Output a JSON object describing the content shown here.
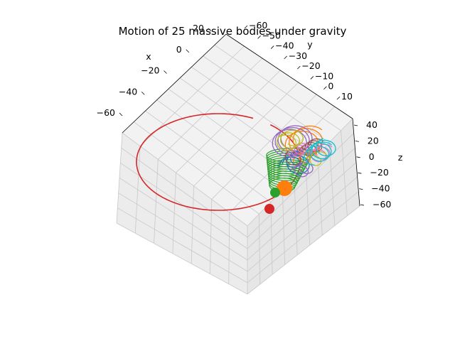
{
  "chart_data": {
    "type": "line",
    "projection": "3d",
    "title": "Motion of 25 massive bodies under gravity",
    "xlabel": "x",
    "ylabel": "y",
    "zlabel": "z",
    "x_ticks": [
      "20",
      "0",
      "−20",
      "−40",
      "−60"
    ],
    "y_ticks": [
      "−60",
      "−50",
      "−40",
      "−30",
      "−20",
      "−10",
      "0",
      "10"
    ],
    "z_ticks": [
      "40",
      "20",
      "0",
      "−20",
      "−40",
      "−60"
    ],
    "xlim": [
      -70,
      25
    ],
    "ylim": [
      -62,
      15
    ],
    "zlim": [
      -62,
      42
    ],
    "grid": true,
    "series": [
      {
        "color": "#d62728",
        "trajectory": "large-ellipse"
      },
      {
        "color": "#2ca02c",
        "trajectory": "helix"
      },
      {
        "color": "#ff7f0e",
        "trajectory": "loops"
      },
      {
        "color": "#1f77b4",
        "trajectory": "loops"
      },
      {
        "color": "#9467bd",
        "trajectory": "loops"
      },
      {
        "color": "#8c564b",
        "trajectory": "loops"
      },
      {
        "color": "#e377c2",
        "trajectory": "loops"
      },
      {
        "color": "#bcbd22",
        "trajectory": "loops"
      },
      {
        "color": "#17becf",
        "trajectory": "loops"
      }
    ],
    "bodies": [
      {
        "color": "#ff7f0e",
        "size": "large"
      },
      {
        "color": "#2ca02c",
        "size": "medium"
      },
      {
        "color": "#d62728",
        "size": "medium"
      }
    ]
  }
}
